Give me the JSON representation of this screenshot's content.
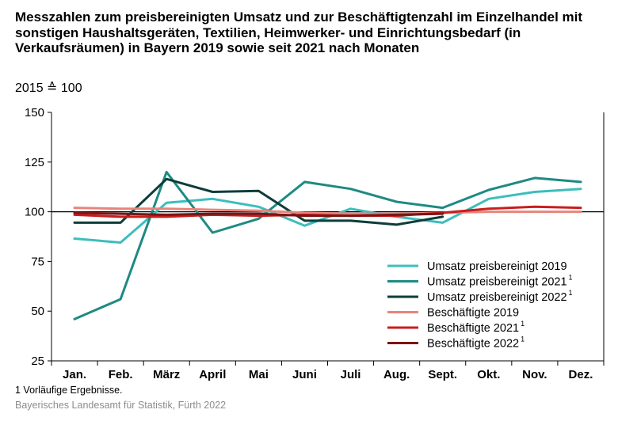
{
  "chart_data": {
    "type": "line",
    "title": "Messzahlen zum preisbereinigten Umsatz und zur Beschäftigtenzahl im Einzelhandel mit sonstigen Haushaltsgeräten, Textilien, Heimwerker- und Einrichtungsbedarf (in Verkaufsräumen) in Bayern 2019 sowie seit 2021 nach Monaten",
    "subtitle": "2015 ≙ 100",
    "categories": [
      "Jan.",
      "Feb.",
      "März",
      "April",
      "Mai",
      "Juni",
      "Juli",
      "Aug.",
      "Sept.",
      "Okt.",
      "Nov.",
      "Dez."
    ],
    "ylim": [
      25,
      150
    ],
    "yticks": [
      25,
      50,
      75,
      100,
      125,
      150
    ],
    "reference_line": 100,
    "grid": false,
    "legend_position": "bottom-right",
    "series": [
      {
        "name": "Umsatz preisbereinigt 2019",
        "footnote": "",
        "color": "#3dbdbd",
        "values": [
          86.5,
          84.5,
          104.5,
          106.5,
          102.5,
          93,
          101.5,
          97.5,
          94.5,
          106.5,
          110,
          111.5
        ]
      },
      {
        "name": "Umsatz preisbereinigt 2021",
        "footnote": "1",
        "color": "#1e8a82",
        "values": [
          46,
          56,
          120,
          89.5,
          96.5,
          115,
          111.5,
          105,
          102,
          111,
          117,
          115
        ]
      },
      {
        "name": "Umsatz preisbereinigt 2022",
        "footnote": "1",
        "color": "#0d3d3a",
        "values": [
          94.5,
          94.5,
          116.5,
          110,
          110.5,
          95.5,
          95.5,
          93.5,
          97.5,
          null,
          null,
          null
        ]
      },
      {
        "name": "Beschäftigte 2019",
        "footnote": "",
        "color": "#e8847c",
        "values": [
          102,
          101.5,
          101.5,
          101,
          100.5,
          99.5,
          99,
          99,
          99.5,
          100,
          100,
          100
        ]
      },
      {
        "name": "Beschäftigte 2021",
        "footnote": "1",
        "color": "#c81e1e",
        "values": [
          98.5,
          97.5,
          97.5,
          98.5,
          98,
          98.5,
          98,
          98,
          99.5,
          101.5,
          102.5,
          102
        ]
      },
      {
        "name": "Beschäftigte 2022",
        "footnote": "1",
        "color": "#7a1414",
        "values": [
          99.5,
          99,
          98.5,
          99,
          99,
          98,
          98,
          98.5,
          99,
          null,
          null,
          null
        ]
      }
    ]
  },
  "footnote": "1  Vorläufige Ergebnisse.",
  "source": "Bayerisches Landesamt für Statistik, Fürth 2022"
}
